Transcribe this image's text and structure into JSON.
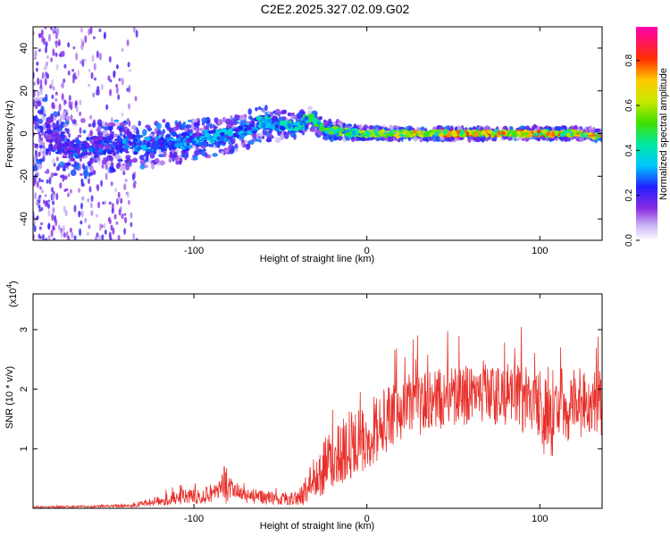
{
  "title": "C2E2.2025.327.02.09.G02",
  "chart_data": [
    {
      "type": "heatmap",
      "xlabel": "Height of straight line (km)",
      "ylabel": "Frequency (Hz)",
      "xlim": [
        -193,
        136
      ],
      "ylim": [
        -50,
        50
      ],
      "xticks": [
        -100,
        0,
        100
      ],
      "xtick_labels": [
        "-100",
        "0",
        "100"
      ],
      "yticks": [
        -40,
        -20,
        0,
        20,
        40
      ],
      "ytick_labels": [
        "-40",
        "-20",
        "0",
        "20",
        "40"
      ],
      "colorbar": {
        "label": "Normalized spectral amplitude",
        "range": [
          0.0,
          0.95
        ],
        "ticks": [
          0.0,
          0.2,
          0.4,
          0.6,
          0.8
        ],
        "tick_labels": [
          "0.0",
          "0.2",
          "0.4",
          "0.6",
          "0.8"
        ]
      },
      "ridge": {
        "x": [
          -185,
          -170,
          -150,
          -130,
          -110,
          -90,
          -75,
          -60,
          -50,
          -40,
          -33,
          -25,
          -15,
          0,
          20,
          40,
          60,
          80,
          100,
          120,
          136
        ],
        "center_hz": [
          0,
          -8,
          -6,
          -5,
          -4,
          -2,
          0,
          5,
          4,
          3,
          8,
          2,
          1,
          0,
          0,
          0,
          0,
          0,
          0,
          0,
          -1
        ],
        "spread_hz": [
          14,
          10,
          9,
          8,
          7,
          6,
          6,
          6,
          5,
          4,
          4,
          3,
          3,
          2,
          2,
          2,
          2,
          2,
          2,
          2,
          2
        ],
        "peak_amplitude": [
          0.25,
          0.3,
          0.3,
          0.35,
          0.35,
          0.38,
          0.4,
          0.42,
          0.45,
          0.5,
          0.55,
          0.55,
          0.6,
          0.65,
          0.75,
          0.8,
          0.9,
          0.85,
          0.85,
          0.85,
          0.8
        ]
      }
    },
    {
      "type": "line",
      "xlabel": "Height of straight line (km)",
      "ylabel": "SNR (10 * v/v)",
      "scale_label": "(x10",
      "scale_exponent": "4",
      "xlim": [
        -193,
        136
      ],
      "ylim": [
        0,
        3.6
      ],
      "xticks": [
        -100,
        0,
        100
      ],
      "xtick_labels": [
        "-100",
        "0",
        "100"
      ],
      "yticks": [
        1,
        2,
        3
      ],
      "ytick_labels": [
        "1",
        "2",
        "3"
      ],
      "series": [
        {
          "name": "SNR",
          "color": "#e8302a",
          "x": [
            -193,
            -160,
            -135,
            -122,
            -110,
            -95,
            -85,
            -82,
            -78,
            -70,
            -60,
            -50,
            -40,
            -35,
            -31,
            -28,
            -25,
            -20,
            -15,
            -10,
            -5,
            0,
            10,
            20,
            30,
            40,
            50,
            60,
            70,
            80,
            90,
            100,
            105,
            110,
            120,
            130,
            136
          ],
          "mean": [
            0.02,
            0.03,
            0.05,
            0.12,
            0.18,
            0.22,
            0.3,
            0.42,
            0.3,
            0.22,
            0.18,
            0.15,
            0.17,
            0.3,
            0.55,
            0.45,
            0.7,
            0.85,
            0.95,
            1.05,
            1.15,
            1.25,
            1.45,
            1.6,
            1.75,
            1.82,
            1.88,
            1.9,
            1.92,
            1.9,
            1.85,
            1.7,
            1.55,
            1.65,
            1.75,
            1.8,
            1.7
          ],
          "spread": [
            0.01,
            0.02,
            0.03,
            0.08,
            0.12,
            0.14,
            0.2,
            0.35,
            0.18,
            0.14,
            0.12,
            0.1,
            0.12,
            0.25,
            0.35,
            0.35,
            0.45,
            0.55,
            0.55,
            0.6,
            0.55,
            0.6,
            0.55,
            0.55,
            0.55,
            0.55,
            0.5,
            0.5,
            0.5,
            0.55,
            0.6,
            0.7,
            0.75,
            0.7,
            0.6,
            0.55,
            0.6
          ]
        }
      ]
    }
  ]
}
